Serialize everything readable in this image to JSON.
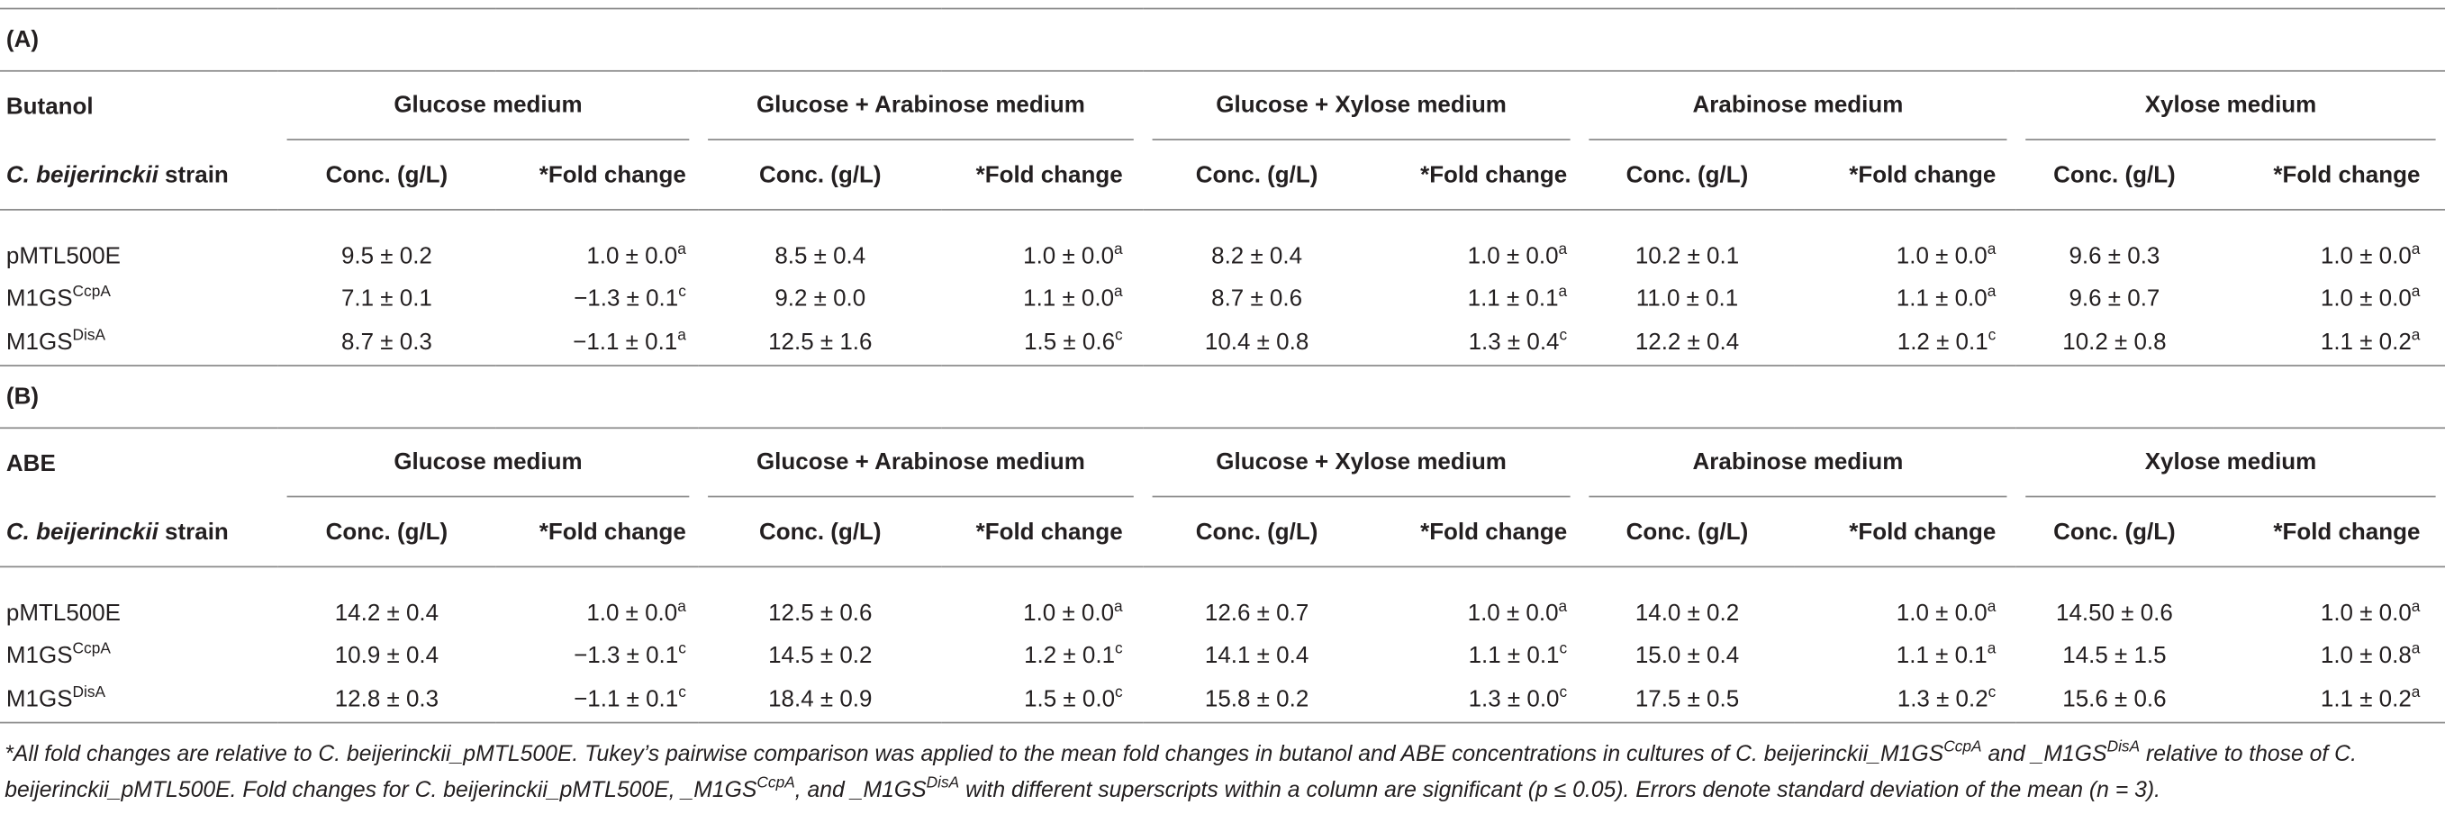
{
  "sections": [
    {
      "label": "(A)",
      "measure": "Butanol",
      "media": [
        "Glucose medium",
        "Glucose + Arabinose medium",
        "Glucose + Xylose medium",
        "Arabinose medium",
        "Xylose medium"
      ],
      "strain_label": [
        "C. beijerinckii",
        "strain"
      ],
      "columns": [
        "Conc. (g/L)",
        "*Fold change"
      ],
      "rows": [
        {
          "strain": [
            "pMTL500E"
          ],
          "cells": [
            "9.5 ± 0.2",
            [
              "1.0 ± 0.0",
              "a"
            ],
            "8.5 ± 0.4",
            [
              "1.0 ± 0.0",
              "a"
            ],
            "8.2 ± 0.4",
            [
              "1.0 ± 0.0",
              "a"
            ],
            "10.2 ± 0.1",
            [
              "1.0 ± 0.0",
              "a"
            ],
            "9.6 ± 0.3",
            [
              "1.0 ± 0.0",
              "a"
            ]
          ]
        },
        {
          "strain": [
            "M1GS",
            "CcpA"
          ],
          "cells": [
            "7.1 ± 0.1",
            [
              "−1.3 ± 0.1",
              "c"
            ],
            "9.2 ± 0.0",
            [
              "1.1 ± 0.0",
              "a"
            ],
            "8.7 ± 0.6",
            [
              "1.1 ± 0.1",
              "a"
            ],
            "11.0 ± 0.1",
            [
              "1.1 ± 0.0",
              "a"
            ],
            "9.6 ± 0.7",
            [
              "1.0 ± 0.0",
              "a"
            ]
          ]
        },
        {
          "strain": [
            "M1GS",
            "DisA"
          ],
          "cells": [
            "8.7 ± 0.3",
            [
              "−1.1 ± 0.1",
              "a"
            ],
            "12.5 ± 1.6",
            [
              "1.5 ± 0.6",
              "c"
            ],
            "10.4 ± 0.8",
            [
              "1.3 ± 0.4",
              "c"
            ],
            "12.2 ± 0.4",
            [
              "1.2 ± 0.1",
              "c"
            ],
            "10.2 ± 0.8",
            [
              "1.1 ± 0.2",
              "a"
            ]
          ]
        }
      ]
    },
    {
      "label": "(B)",
      "measure": "ABE",
      "media": [
        "Glucose medium",
        "Glucose + Arabinose medium",
        "Glucose + Xylose medium",
        "Arabinose medium",
        "Xylose medium"
      ],
      "strain_label": [
        "C. beijerinckii",
        "strain"
      ],
      "columns": [
        "Conc. (g/L)",
        "*Fold change"
      ],
      "rows": [
        {
          "strain": [
            "pMTL500E"
          ],
          "cells": [
            "14.2 ± 0.4",
            [
              "1.0 ± 0.0",
              "a"
            ],
            "12.5 ± 0.6",
            [
              "1.0 ± 0.0",
              "a"
            ],
            "12.6 ± 0.7",
            [
              "1.0 ± 0.0",
              "a"
            ],
            "14.0 ± 0.2",
            [
              "1.0 ± 0.0",
              "a"
            ],
            "14.50 ± 0.6",
            [
              "1.0 ± 0.0",
              "a"
            ]
          ]
        },
        {
          "strain": [
            "M1GS",
            "CcpA"
          ],
          "cells": [
            "10.9 ± 0.4",
            [
              "−1.3 ± 0.1",
              "c"
            ],
            "14.5 ± 0.2",
            [
              "1.2 ± 0.1",
              "c"
            ],
            "14.1 ± 0.4",
            [
              "1.1 ± 0.1",
              "c"
            ],
            "15.0 ± 0.4",
            [
              "1.1 ± 0.1",
              "a"
            ],
            "14.5 ± 1.5",
            [
              "1.0 ± 0.8",
              "a"
            ]
          ]
        },
        {
          "strain": [
            "M1GS",
            "DisA"
          ],
          "cells": [
            "12.8 ± 0.3",
            [
              "−1.1 ± 0.1",
              "c"
            ],
            "18.4 ± 0.9",
            [
              "1.5 ± 0.0",
              "c"
            ],
            "15.8 ± 0.2",
            [
              "1.3 ± 0.0",
              "c"
            ],
            "17.5 ± 0.5",
            [
              "1.3 ± 0.2",
              "c"
            ],
            "15.6 ± 0.6",
            [
              "1.1 ± 0.2",
              "a"
            ]
          ]
        }
      ]
    }
  ],
  "footnote": [
    "*All fold changes are relative to C. beijerinckii_pMTL500E. Tukey’s pairwise comparison was applied to the mean fold changes in butanol and ABE concentrations in cultures of C. beijerinckii_M1GS",
    {
      "sup": "CcpA"
    },
    " and _M1GS",
    {
      "sup": "DisA"
    },
    " relative to those of C. beijerinckii_pMTL500E. Fold changes for C. beijerinckii_pMTL500E, _M1GS",
    {
      "sup": "CcpA"
    },
    ", and _M1GS",
    {
      "sup": "DisA"
    },
    " with different superscripts within a column are significant (p ≤ 0.05). Errors denote standard deviation of the mean (n = 3)."
  ]
}
